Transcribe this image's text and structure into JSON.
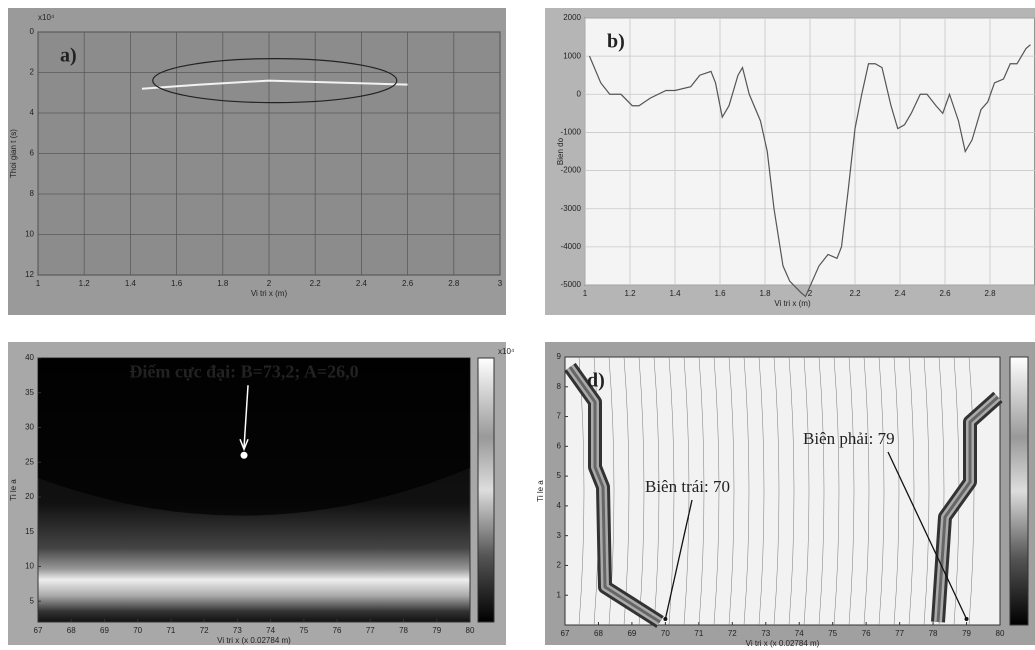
{
  "chart_data": [
    {
      "type": "line",
      "label": "a)",
      "xlabel": "Vi tri x (m)",
      "ylabel": "Thoi gian t (s)",
      "y_multiplier": "x10⁴",
      "x": [
        1.45,
        1.7,
        2.0,
        2.3,
        2.6
      ],
      "values": [
        2.8,
        2.6,
        2.4,
        2.5,
        2.6
      ],
      "color": "#f2f2f2",
      "xlim": [
        1,
        3
      ],
      "ylim": [
        0,
        12
      ],
      "y_inverted": true,
      "xticks": [
        1,
        1.2,
        1.4,
        1.6,
        1.8,
        2,
        2.2,
        2.4,
        2.6,
        2.8,
        3
      ],
      "yticks": [
        0,
        2,
        4,
        6,
        8,
        10,
        12
      ],
      "grid": true
    },
    {
      "type": "line",
      "label": "b)",
      "xlabel": "Vi tri x (m)",
      "ylabel": "Bien do",
      "x": [
        1.02,
        1.07,
        1.11,
        1.16,
        1.21,
        1.24,
        1.29,
        1.36,
        1.4,
        1.47,
        1.51,
        1.56,
        1.58,
        1.61,
        1.64,
        1.68,
        1.7,
        1.73,
        1.78,
        1.81,
        1.84,
        1.88,
        1.91,
        1.96,
        1.98,
        2.01,
        2.04,
        2.08,
        2.12,
        2.14,
        2.17,
        2.2,
        2.23,
        2.26,
        2.29,
        2.32,
        2.36,
        2.39,
        2.42,
        2.45,
        2.49,
        2.52,
        2.56,
        2.59,
        2.62,
        2.66,
        2.69,
        2.72,
        2.76,
        2.79,
        2.82,
        2.86,
        2.89,
        2.92,
        2.96,
        2.98
      ],
      "values": [
        1000,
        300,
        0,
        0,
        -300,
        -300,
        -100,
        100,
        100,
        200,
        500,
        600,
        300,
        -600,
        -300,
        500,
        700,
        0,
        -700,
        -1500,
        -3000,
        -4500,
        -4900,
        -5200,
        -5300,
        -4900,
        -4500,
        -4200,
        -4300,
        -4000,
        -2500,
        -900,
        0,
        800,
        800,
        700,
        -300,
        -900,
        -800,
        -500,
        0,
        0,
        -300,
        -500,
        0,
        -700,
        -1500,
        -1200,
        -400,
        -200,
        300,
        400,
        800,
        800,
        1200,
        1300
      ],
      "color": "#555555",
      "xlim": [
        1,
        3
      ],
      "ylim": [
        -5000,
        2000
      ],
      "xticks": [
        1,
        1.2,
        1.4,
        1.6,
        1.8,
        2,
        2.2,
        2.4,
        2.6,
        2.8
      ],
      "yticks": [
        -5000,
        -4000,
        -3000,
        -2000,
        -1000,
        0,
        1000,
        2000
      ],
      "grid": true
    },
    {
      "type": "heatmap",
      "xlabel": "Vi tri x (x 0.02784 m)",
      "ylabel": "Ti le a",
      "colorbar_label": "x10⁴",
      "xlim": [
        67,
        80
      ],
      "ylim": [
        2,
        40
      ],
      "xticks": [
        67,
        68,
        69,
        70,
        71,
        72,
        73,
        74,
        75,
        76,
        77,
        78,
        79,
        80
      ],
      "yticks": [
        5,
        10,
        15,
        20,
        25,
        30,
        35,
        40
      ],
      "annotation": {
        "text": "Điểm cực đại: B=73,2; A=26,0",
        "x": 73.2,
        "y": 26
      }
    },
    {
      "type": "contour",
      "label": "d)",
      "xlabel": "Vi tri x (x 0.02784 m)",
      "ylabel": "Ti le a",
      "xlim": [
        67,
        80
      ],
      "ylim": [
        0,
        9
      ],
      "xticks": [
        67,
        68,
        69,
        70,
        71,
        72,
        73,
        74,
        75,
        76,
        77,
        78,
        79,
        80
      ],
      "yticks": [
        1,
        2,
        3,
        4,
        5,
        6,
        7,
        8,
        9
      ],
      "annotations": [
        {
          "text": "Biên trái: 70",
          "x": 70,
          "y": 0
        },
        {
          "text": "Biên phải: 79",
          "x": 79,
          "y": 0
        }
      ]
    }
  ]
}
